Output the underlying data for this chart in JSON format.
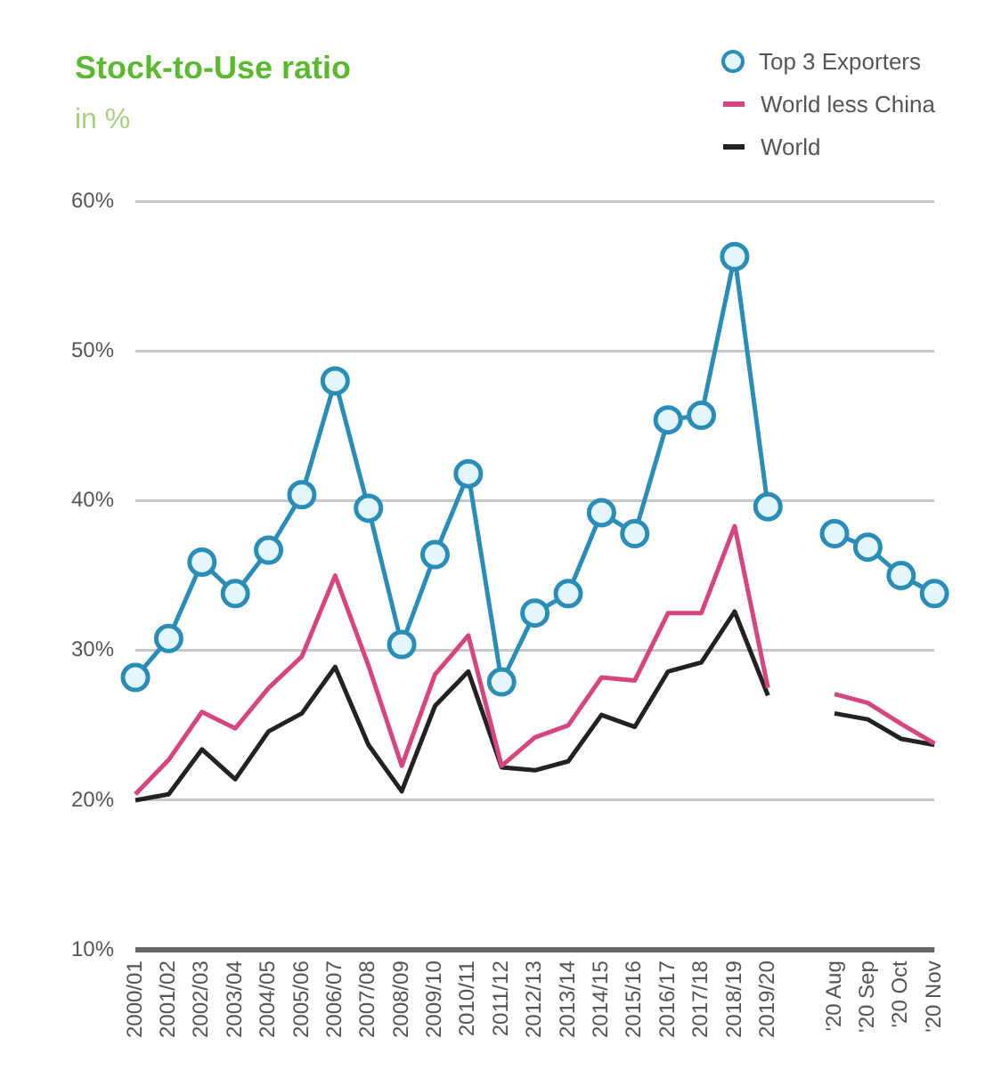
{
  "chart_data": {
    "type": "line",
    "title": "Stock-to-Use ratio",
    "subtitle": "in %",
    "categories": [
      "2000/01",
      "2001/02",
      "2002/03",
      "2003/04",
      "2004/05",
      "2005/06",
      "2006/07",
      "2007/08",
      "2008/09",
      "2009/10",
      "2010/11",
      "2011/12",
      "2012/13",
      "2013/14",
      "2014/15",
      "2015/16",
      "2016/17",
      "2017/18",
      "2018/19",
      "2019/20",
      null,
      "'20 Aug",
      "'20 Sep",
      "'20 Oct",
      "'20 Nov"
    ],
    "series": [
      {
        "name": "Top 3 Exporters",
        "color": "#2a8db8",
        "marker": "circle",
        "values": [
          28.2,
          30.8,
          35.9,
          33.8,
          36.7,
          40.4,
          48.0,
          39.5,
          30.4,
          36.4,
          41.8,
          27.9,
          32.5,
          33.8,
          39.2,
          37.8,
          45.4,
          45.7,
          56.3,
          39.6,
          null,
          37.8,
          36.9,
          35.0,
          33.8
        ]
      },
      {
        "name": "World less China",
        "color": "#d6457f",
        "marker": "none",
        "values": [
          20.4,
          22.7,
          25.9,
          24.8,
          27.5,
          29.6,
          35.0,
          29.0,
          22.3,
          28.4,
          31.0,
          22.3,
          24.2,
          25.0,
          28.2,
          28.0,
          32.5,
          32.5,
          38.3,
          27.5,
          null,
          27.1,
          26.5,
          25.1,
          23.8
        ]
      },
      {
        "name": "World",
        "color": "#222222",
        "marker": "none",
        "values": [
          20.0,
          20.4,
          23.4,
          21.4,
          24.6,
          25.8,
          28.9,
          23.7,
          20.6,
          26.3,
          28.6,
          22.2,
          22.0,
          22.6,
          25.7,
          24.9,
          28.6,
          29.2,
          32.6,
          27.0,
          null,
          25.8,
          25.4,
          24.1,
          23.7
        ]
      }
    ],
    "ylim": [
      10,
      60
    ],
    "yticks": [
      {
        "value": 10,
        "label": "10%"
      },
      {
        "value": 20,
        "label": "20%"
      },
      {
        "value": 30,
        "label": "30%"
      },
      {
        "value": 40,
        "label": "40%"
      },
      {
        "value": 50,
        "label": "50%"
      },
      {
        "value": 60,
        "label": "60%"
      }
    ],
    "grid": "y",
    "legend": "top right"
  }
}
